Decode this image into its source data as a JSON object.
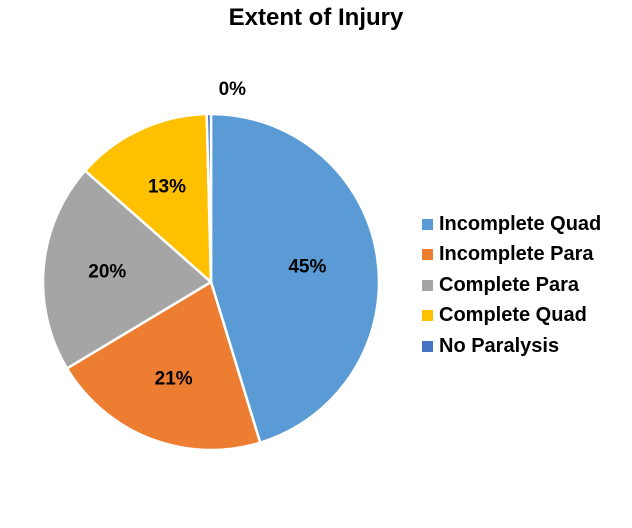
{
  "chart_data": {
    "type": "pie",
    "title": "Extent of Injury",
    "categories": [
      "Incomplete Quad",
      "Incomplete Para",
      "Complete Para",
      "Complete Quad",
      "No Paralysis"
    ],
    "values": [
      45,
      21,
      20,
      13,
      0.4
    ],
    "labels": [
      "45%",
      "21%",
      "20%",
      "13%",
      "0%"
    ],
    "colors": [
      "#5B9BD5",
      "#ED7D31",
      "#A5A5A5",
      "#FFC000",
      "#4472C4"
    ],
    "legend_position": "right",
    "start_angle": "top",
    "direction": "clockwise"
  }
}
